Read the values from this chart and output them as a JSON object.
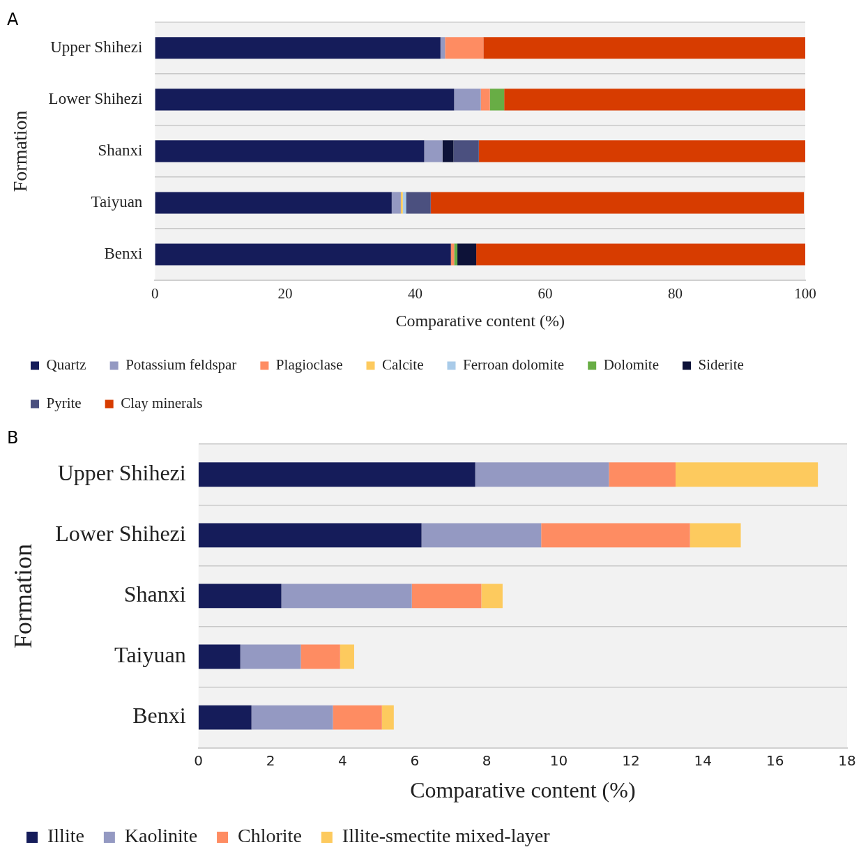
{
  "chart_data": [
    {
      "type": "bar",
      "orientation": "horizontal",
      "stacked": true,
      "annotations": [
        "A"
      ],
      "xlabel": "Comparative content (%)",
      "ylabel": "Formation",
      "categories": [
        "Upper Shihezi",
        "Lower Shihezi",
        "Shanxi",
        "Taiyuan",
        "Benxi"
      ],
      "series": [
        {
          "name": "Quartz",
          "color": "#151c5a",
          "values": [
            43.9,
            46.0,
            41.4,
            36.4,
            45.5
          ]
        },
        {
          "name": "Potassium feldspar",
          "color": "#9499c2",
          "values": [
            0.7,
            4.1,
            2.8,
            1.4,
            null
          ]
        },
        {
          "name": "Plagioclase",
          "color": "#fe8c62",
          "values": [
            5.9,
            1.4,
            null,
            null,
            0.5
          ]
        },
        {
          "name": "Calcite",
          "color": "#fdca5e",
          "values": [
            null,
            null,
            null,
            0.3,
            null
          ]
        },
        {
          "name": "Ferroan dolomite",
          "color": "#a9cbe9",
          "values": [
            null,
            null,
            null,
            0.5,
            null
          ]
        },
        {
          "name": "Dolomite",
          "color": "#68ad45",
          "values": [
            null,
            2.2,
            null,
            null,
            0.5
          ]
        },
        {
          "name": "Siderite",
          "color": "#0d1238",
          "values": [
            null,
            null,
            1.7,
            null,
            2.9
          ]
        },
        {
          "name": "Pyrite",
          "color": "#4b507f",
          "values": [
            null,
            null,
            3.9,
            3.8,
            null
          ]
        },
        {
          "name": "Clay minerals",
          "color": "#d73c00",
          "values": [
            49.5,
            46.3,
            50.2,
            57.4,
            50.6
          ]
        }
      ],
      "xlim": [
        0,
        100
      ],
      "xticks": [
        0,
        20,
        40,
        60,
        80,
        100
      ],
      "grid": "y",
      "legend": "bottom"
    },
    {
      "type": "bar",
      "orientation": "horizontal",
      "stacked": true,
      "annotations": [
        "B"
      ],
      "xlabel": "Comparative content (%)",
      "ylabel": "Formation",
      "categories": [
        "Upper Shihezi",
        "Lower Shihezi",
        "Shanxi",
        "Taiyuan",
        "Benxi"
      ],
      "series": [
        {
          "name": "Illite",
          "color": "#151c5a",
          "values": [
            7.68,
            6.19,
            2.3,
            1.16,
            1.47
          ]
        },
        {
          "name": "Kaolinite",
          "color": "#9499c2",
          "values": [
            3.71,
            3.32,
            3.62,
            1.68,
            2.26
          ]
        },
        {
          "name": "Chlorite",
          "color": "#fe8c62",
          "values": [
            1.85,
            4.13,
            1.93,
            1.09,
            1.36
          ]
        },
        {
          "name": "Illite-smectite mixed-layer",
          "color": "#fdca5e",
          "values": [
            3.95,
            1.41,
            0.59,
            0.39,
            0.33
          ]
        }
      ],
      "xlim": [
        0,
        18
      ],
      "xticks": [
        0,
        2,
        4,
        6,
        8,
        10,
        12,
        14,
        16,
        18
      ],
      "grid": "y",
      "legend": "bottom"
    }
  ]
}
